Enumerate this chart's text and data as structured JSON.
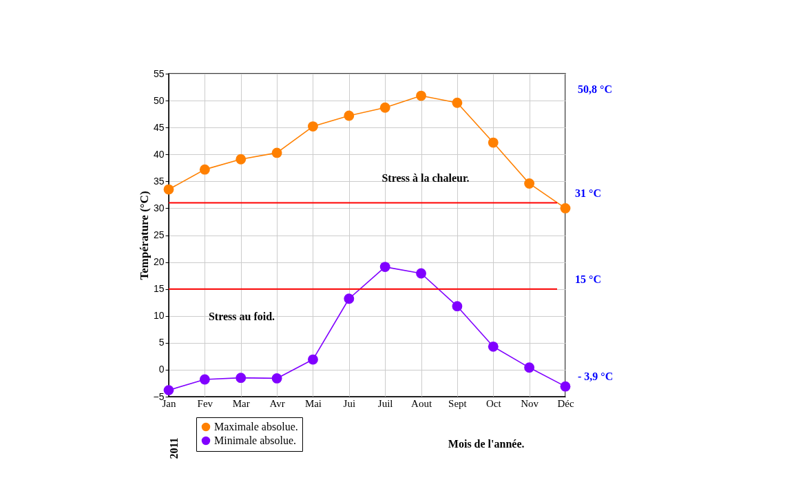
{
  "chart_data": {
    "type": "line",
    "xlabel": "Mois de l'année.",
    "ylabel": "Température  (°C)",
    "categories": [
      "Jan",
      "Fev",
      "Mar",
      "Avr",
      "Mai",
      "Jui",
      "Juil",
      "Aout",
      "Sept",
      "Oct",
      "Nov",
      "Déc"
    ],
    "series": [
      {
        "name": "Maximale absolue.",
        "color": "#ff8000",
        "values": [
          33.5,
          37.2,
          39.1,
          40.3,
          45.2,
          47.2,
          48.7,
          50.9,
          49.6,
          42.2,
          34.6,
          30.0
        ]
      },
      {
        "name": "Minimale absolue.",
        "color": "#8000ff",
        "values": [
          -3.8,
          -1.8,
          -1.5,
          -1.6,
          1.9,
          13.2,
          19.1,
          17.9,
          11.8,
          4.3,
          0.4,
          -3.1
        ]
      }
    ],
    "ylim": [
      -5,
      55
    ],
    "yticks": [
      -5,
      0,
      5,
      10,
      15,
      20,
      25,
      30,
      35,
      40,
      45,
      50,
      55
    ],
    "ref_lines": [
      {
        "axis": "y",
        "value": 31,
        "label": "31 °C",
        "color": "#ff0000"
      },
      {
        "axis": "y",
        "value": 15,
        "label": "15 °C",
        "color": "#ff0000"
      }
    ],
    "annotations": [
      "Stress à la chaleur.",
      "Stress au foid.",
      "50,8 °C",
      "- 3,9 °C",
      "2011"
    ],
    "grid": true,
    "legend": "bottom left",
    "marker": "circle",
    "line_style": "solid"
  }
}
